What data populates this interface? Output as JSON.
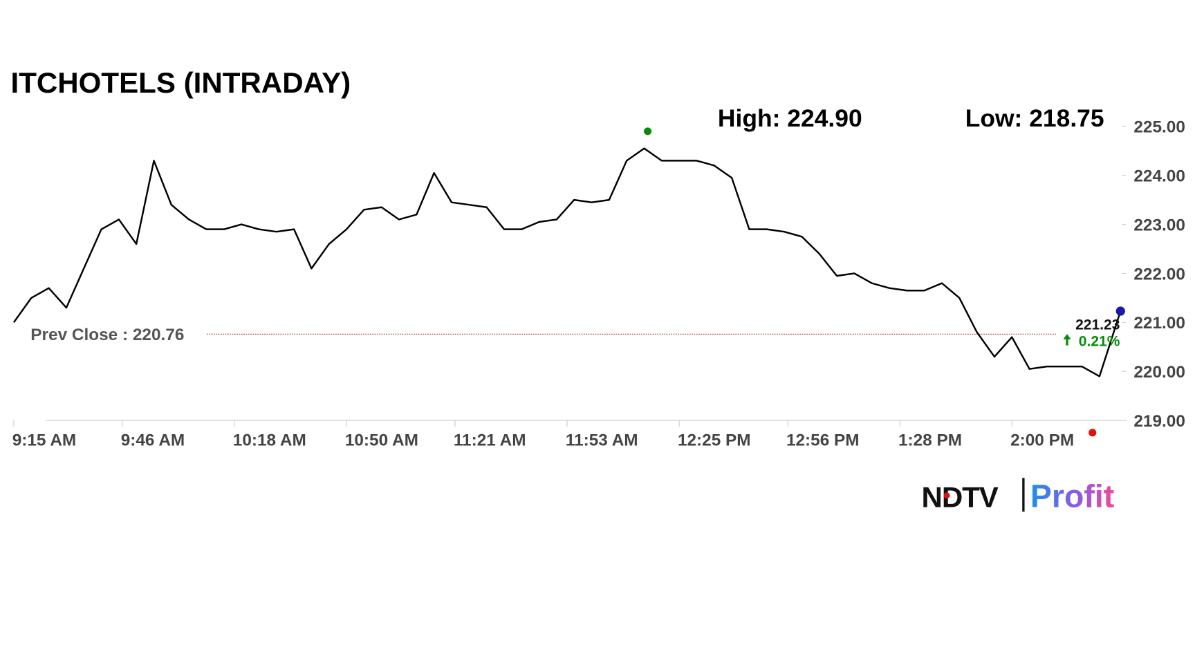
{
  "chart_data": {
    "type": "line",
    "title": "ITCHOTELS (INTRADAY)",
    "high_label": "High: 224.90",
    "high": 224.9,
    "high_time": "12:16 PM",
    "low_label": "Low: 218.75",
    "low": 218.75,
    "low_time": "2:23 PM",
    "prev_close_label": "Prev Close : 220.76",
    "prev_close": 220.76,
    "last": 221.23,
    "change": 0.21,
    "change_label": "0.21%",
    "color": "#000000",
    "high_color": "#0a8a0a",
    "low_color": "#e01010",
    "last_color": "#1a1aa8",
    "prev_close_color": "#a83232",
    "x": [
      "9:15 AM",
      "9:20 AM",
      "9:25 AM",
      "9:30 AM",
      "9:35 AM",
      "9:40 AM",
      "9:45 AM",
      "9:50 AM",
      "9:55 AM",
      "10:00 AM",
      "10:05 AM",
      "10:10 AM",
      "10:15 AM",
      "10:20 AM",
      "10:25 AM",
      "10:30 AM",
      "10:35 AM",
      "10:40 AM",
      "10:45 AM",
      "10:50 AM",
      "10:55 AM",
      "11:00 AM",
      "11:05 AM",
      "11:10 AM",
      "11:15 AM",
      "11:20 AM",
      "11:25 AM",
      "11:30 AM",
      "11:35 AM",
      "11:40 AM",
      "11:45 AM",
      "11:50 AM",
      "11:55 AM",
      "12:00 PM",
      "12:05 PM",
      "12:10 PM",
      "12:15 PM",
      "12:20 PM",
      "12:25 PM",
      "12:30 PM",
      "12:35 PM",
      "12:40 PM",
      "12:45 PM",
      "12:50 PM",
      "12:55 PM",
      "1:00 PM",
      "1:05 PM",
      "1:10 PM",
      "1:15 PM",
      "1:20 PM",
      "1:25 PM",
      "1:30 PM",
      "1:35 PM",
      "1:40 PM",
      "1:45 PM",
      "1:50 PM",
      "1:55 PM",
      "2:00 PM",
      "2:05 PM",
      "2:10 PM",
      "2:15 PM",
      "2:20 PM",
      "2:25 PM",
      "2:31 PM"
    ],
    "values": [
      221.0,
      221.5,
      221.7,
      221.3,
      222.1,
      222.9,
      223.1,
      222.6,
      224.3,
      223.4,
      223.1,
      222.9,
      222.9,
      223.0,
      222.9,
      222.85,
      222.9,
      222.1,
      222.6,
      222.9,
      223.3,
      223.35,
      223.1,
      223.2,
      224.05,
      223.45,
      223.4,
      223.35,
      222.9,
      222.9,
      223.05,
      223.1,
      223.5,
      223.45,
      223.5,
      224.3,
      224.55,
      224.3,
      224.3,
      224.3,
      224.2,
      223.95,
      222.9,
      222.9,
      222.85,
      222.75,
      222.4,
      221.95,
      222.0,
      221.8,
      221.7,
      221.65,
      221.65,
      221.8,
      221.5,
      220.8,
      220.3,
      220.7,
      220.05,
      220.1,
      220.1,
      220.1,
      219.9,
      221.23
    ],
    "xlim": [
      "9:15 AM",
      "2:32 PM"
    ],
    "xticks": [
      "9:15 AM",
      "9:46 AM",
      "10:18 AM",
      "10:50 AM",
      "11:21 AM",
      "11:53 AM",
      "12:25 PM",
      "12:56 PM",
      "1:28 PM",
      "2:00 PM"
    ],
    "ylim": [
      219,
      225
    ],
    "yticks": [
      {
        "value": 219,
        "label": "219.00"
      },
      {
        "value": 220,
        "label": "220.00"
      },
      {
        "value": 221,
        "label": "221.00"
      },
      {
        "value": 222,
        "label": "222.00"
      },
      {
        "value": 223,
        "label": "223.00"
      },
      {
        "value": 224,
        "label": "224.00"
      },
      {
        "value": 225,
        "label": "225.00"
      }
    ],
    "brand": [
      "NDTV",
      "Profit"
    ]
  }
}
